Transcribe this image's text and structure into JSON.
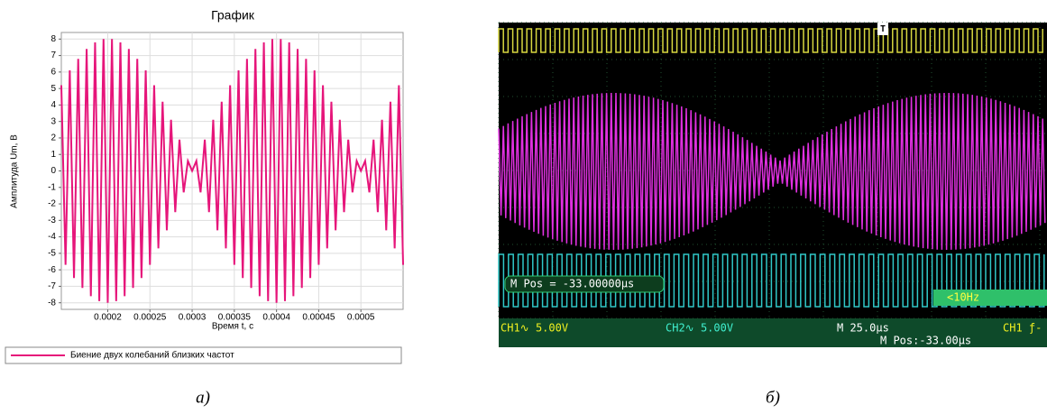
{
  "chart_data": {
    "type": "line",
    "title": "График",
    "x_label": "Время t, с",
    "y_label": "Амплитуда Um, В",
    "x": [
      0.000145,
      0.00015,
      0.000155,
      0.00016,
      0.000165,
      0.00017,
      0.000175,
      0.00018,
      0.000185,
      0.00019,
      0.000195,
      0.0002,
      0.000205,
      0.00021,
      0.000215,
      0.00022,
      0.000225,
      0.00023,
      0.000235,
      0.00024,
      0.000245,
      0.00025,
      0.000255,
      0.00026,
      0.000265,
      0.00027,
      0.000275,
      0.00028,
      0.000285,
      0.00029,
      0.000295,
      0.0003,
      0.000305,
      0.00031,
      0.000315,
      0.00032,
      0.000325,
      0.00033,
      0.000335,
      0.00034,
      0.000345,
      0.00035,
      0.000355,
      0.00036,
      0.000365,
      0.00037,
      0.000375,
      0.00038,
      0.000385,
      0.00039,
      0.000395,
      0.0004,
      0.000405,
      0.00041,
      0.000415,
      0.00042,
      0.000425,
      0.00043,
      0.000435,
      0.00044,
      0.000445,
      0.00045,
      0.000455,
      0.00046,
      0.000465,
      0.00047,
      0.000475,
      0.00048,
      0.000485,
      0.00049,
      0.000495,
      0.0005,
      0.000505,
      0.00051,
      0.000515,
      0.00052,
      0.000525,
      0.00053,
      0.000535,
      0.00054,
      0.000545,
      0.00055
    ],
    "series": [
      {
        "name": "Биение двух колебаний близких частот",
        "color": "#e6157a",
        "values": [
          5.2,
          -5.7,
          6.1,
          -6.5,
          6.8,
          -7.1,
          7.4,
          -7.6,
          7.8,
          -7.9,
          8.0,
          -8.0,
          8.0,
          -7.9,
          7.8,
          -7.6,
          7.4,
          -7.1,
          6.8,
          -6.5,
          6.1,
          -5.7,
          5.2,
          -4.7,
          4.2,
          -3.6,
          3.1,
          -2.5,
          1.9,
          -1.3,
          0.6,
          0,
          0.6,
          -1.3,
          1.9,
          -2.5,
          3.1,
          -3.6,
          4.2,
          -4.7,
          5.2,
          -5.7,
          6.1,
          -6.5,
          6.8,
          -7.1,
          7.4,
          -7.6,
          7.8,
          -7.9,
          8.0,
          -8.0,
          8.0,
          -7.9,
          7.8,
          -7.6,
          7.4,
          -7.1,
          6.8,
          -6.5,
          6.1,
          -5.7,
          5.2,
          -4.7,
          4.2,
          -3.6,
          3.1,
          -2.5,
          1.9,
          -1.3,
          0.6,
          0,
          0.6,
          -1.3,
          1.9,
          -2.5,
          3.1,
          -3.6,
          4.2,
          -4.7,
          5.2,
          -5.7
        ]
      }
    ],
    "xlim": [
      0.000145,
      0.00055
    ],
    "xticks": [
      0.0002,
      0.00025,
      0.0003,
      0.00035,
      0.0004,
      0.00045,
      0.0005
    ],
    "ylim": [
      -8.4,
      8.4
    ],
    "yticks": [
      -8,
      -7,
      -6,
      -5,
      -4,
      -3,
      -2,
      -1,
      0,
      1,
      2,
      3,
      4,
      5,
      6,
      7,
      8
    ],
    "grid": true,
    "legend": "bottom"
  },
  "oscilloscope": {
    "trigger_marker": "T",
    "m_pos_box": "M Pos = -33.00000μs",
    "freq": "<10Hz",
    "ch1": "CH1∿ 5.00V",
    "ch2": "CH2∿ 5.00V",
    "timebase": "M 25.0μs",
    "m_pos": "M Pos:-33.00μs",
    "trigger": "CH1 ƒ-"
  },
  "captions": {
    "a": "а)",
    "b": "б)"
  }
}
